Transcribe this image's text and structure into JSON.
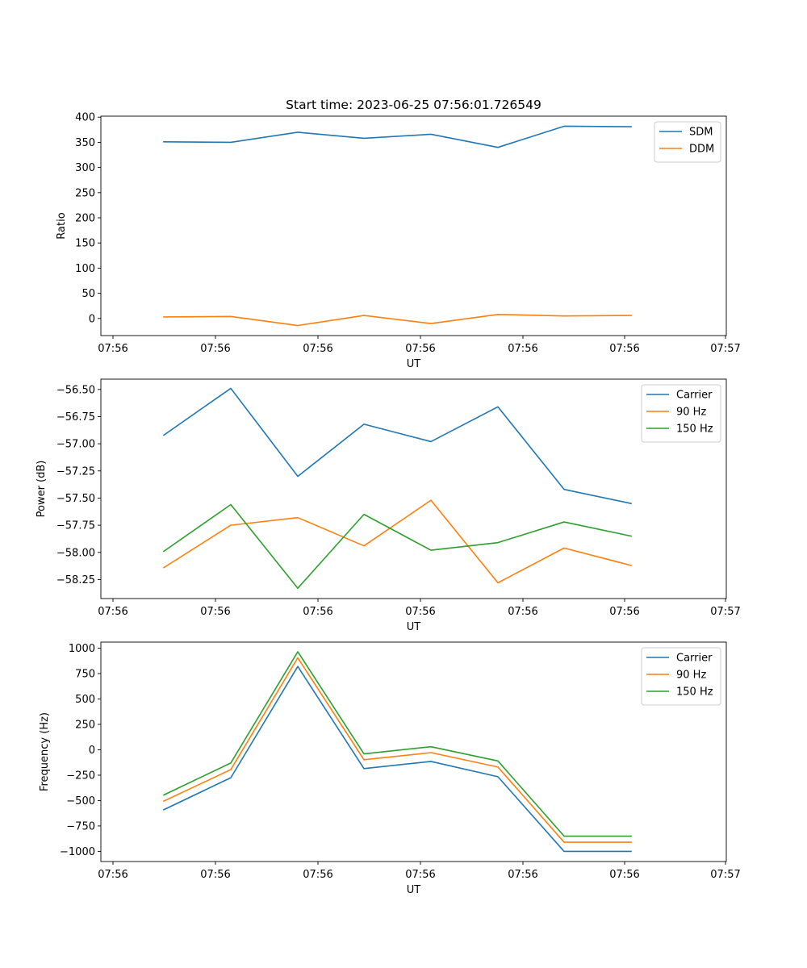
{
  "chart_data": [
    {
      "type": "line",
      "title": "Start time: 2023-06-25 07:56:01.726549",
      "xlabel": "UT",
      "ylabel": "Ratio",
      "x_tick_labels": [
        "07:56",
        "07:56",
        "07:56",
        "07:56",
        "07:56",
        "07:56",
        "07:56"
      ],
      "x_last_tick_label": "07:57",
      "yticks": [
        0,
        50,
        100,
        150,
        200,
        250,
        300,
        350,
        400
      ],
      "ytick_labels": [
        "0",
        "50",
        "100",
        "150",
        "200",
        "250",
        "300",
        "350",
        "400"
      ],
      "ylim": [
        -34,
        402
      ],
      "legend_position": "upper-right",
      "grid": false,
      "series": [
        {
          "name": "SDM",
          "color": "#1f77b4",
          "values": [
            351,
            350,
            370,
            358,
            366,
            340,
            382,
            381
          ]
        },
        {
          "name": "DDM",
          "color": "#ff7f0e",
          "values": [
            3,
            4,
            -14,
            6,
            -10,
            8,
            5,
            6
          ]
        }
      ]
    },
    {
      "type": "line",
      "title": "",
      "xlabel": "UT",
      "ylabel": "Power (dB)",
      "x_tick_labels": [
        "07:56",
        "07:56",
        "07:56",
        "07:56",
        "07:56",
        "07:56",
        "07:56"
      ],
      "x_last_tick_label": "07:57",
      "yticks": [
        -58.25,
        -58.0,
        -57.75,
        -57.5,
        -57.25,
        -57.0,
        -56.75,
        -56.5
      ],
      "ytick_labels": [
        "−58.25",
        "−58.00",
        "−57.75",
        "−57.50",
        "−57.25",
        "−57.00",
        "−56.75",
        "−56.50"
      ],
      "ylim": [
        -58.425,
        -56.405
      ],
      "legend_position": "upper-right",
      "grid": false,
      "series": [
        {
          "name": "Carrier",
          "color": "#1f77b4",
          "values": [
            -56.92,
            -56.49,
            -57.3,
            -56.82,
            -56.98,
            -56.66,
            -57.42,
            -57.55
          ]
        },
        {
          "name": "90 Hz",
          "color": "#ff7f0e",
          "values": [
            -58.14,
            -57.75,
            -57.68,
            -57.94,
            -57.52,
            -58.28,
            -57.96,
            -58.12
          ]
        },
        {
          "name": "150 Hz",
          "color": "#2ca02c",
          "values": [
            -57.99,
            -57.56,
            -58.33,
            -57.65,
            -57.98,
            -57.91,
            -57.72,
            -57.85
          ]
        }
      ]
    },
    {
      "type": "line",
      "title": "",
      "xlabel": "UT",
      "ylabel": "Frequency (Hz)",
      "x_tick_labels": [
        "07:56",
        "07:56",
        "07:56",
        "07:56",
        "07:56",
        "07:56",
        "07:56"
      ],
      "x_last_tick_label": "07:57",
      "yticks": [
        -1000,
        -750,
        -500,
        -250,
        0,
        250,
        500,
        750,
        1000
      ],
      "ytick_labels": [
        "−1000",
        "−750",
        "−500",
        "−250",
        "0",
        "250",
        "500",
        "750",
        "1000"
      ],
      "ylim": [
        -1100,
        1060
      ],
      "legend_position": "upper-right",
      "grid": false,
      "series": [
        {
          "name": "Carrier",
          "color": "#1f77b4",
          "values": [
            -590,
            -275,
            820,
            -185,
            -115,
            -265,
            -1000,
            -1000
          ]
        },
        {
          "name": "90 Hz",
          "color": "#ff7f0e",
          "values": [
            -505,
            -195,
            905,
            -98,
            -28,
            -170,
            -910,
            -910
          ]
        },
        {
          "name": "150 Hz",
          "color": "#2ca02c",
          "values": [
            -445,
            -130,
            965,
            -40,
            30,
            -110,
            -850,
            -850
          ]
        }
      ]
    }
  ]
}
